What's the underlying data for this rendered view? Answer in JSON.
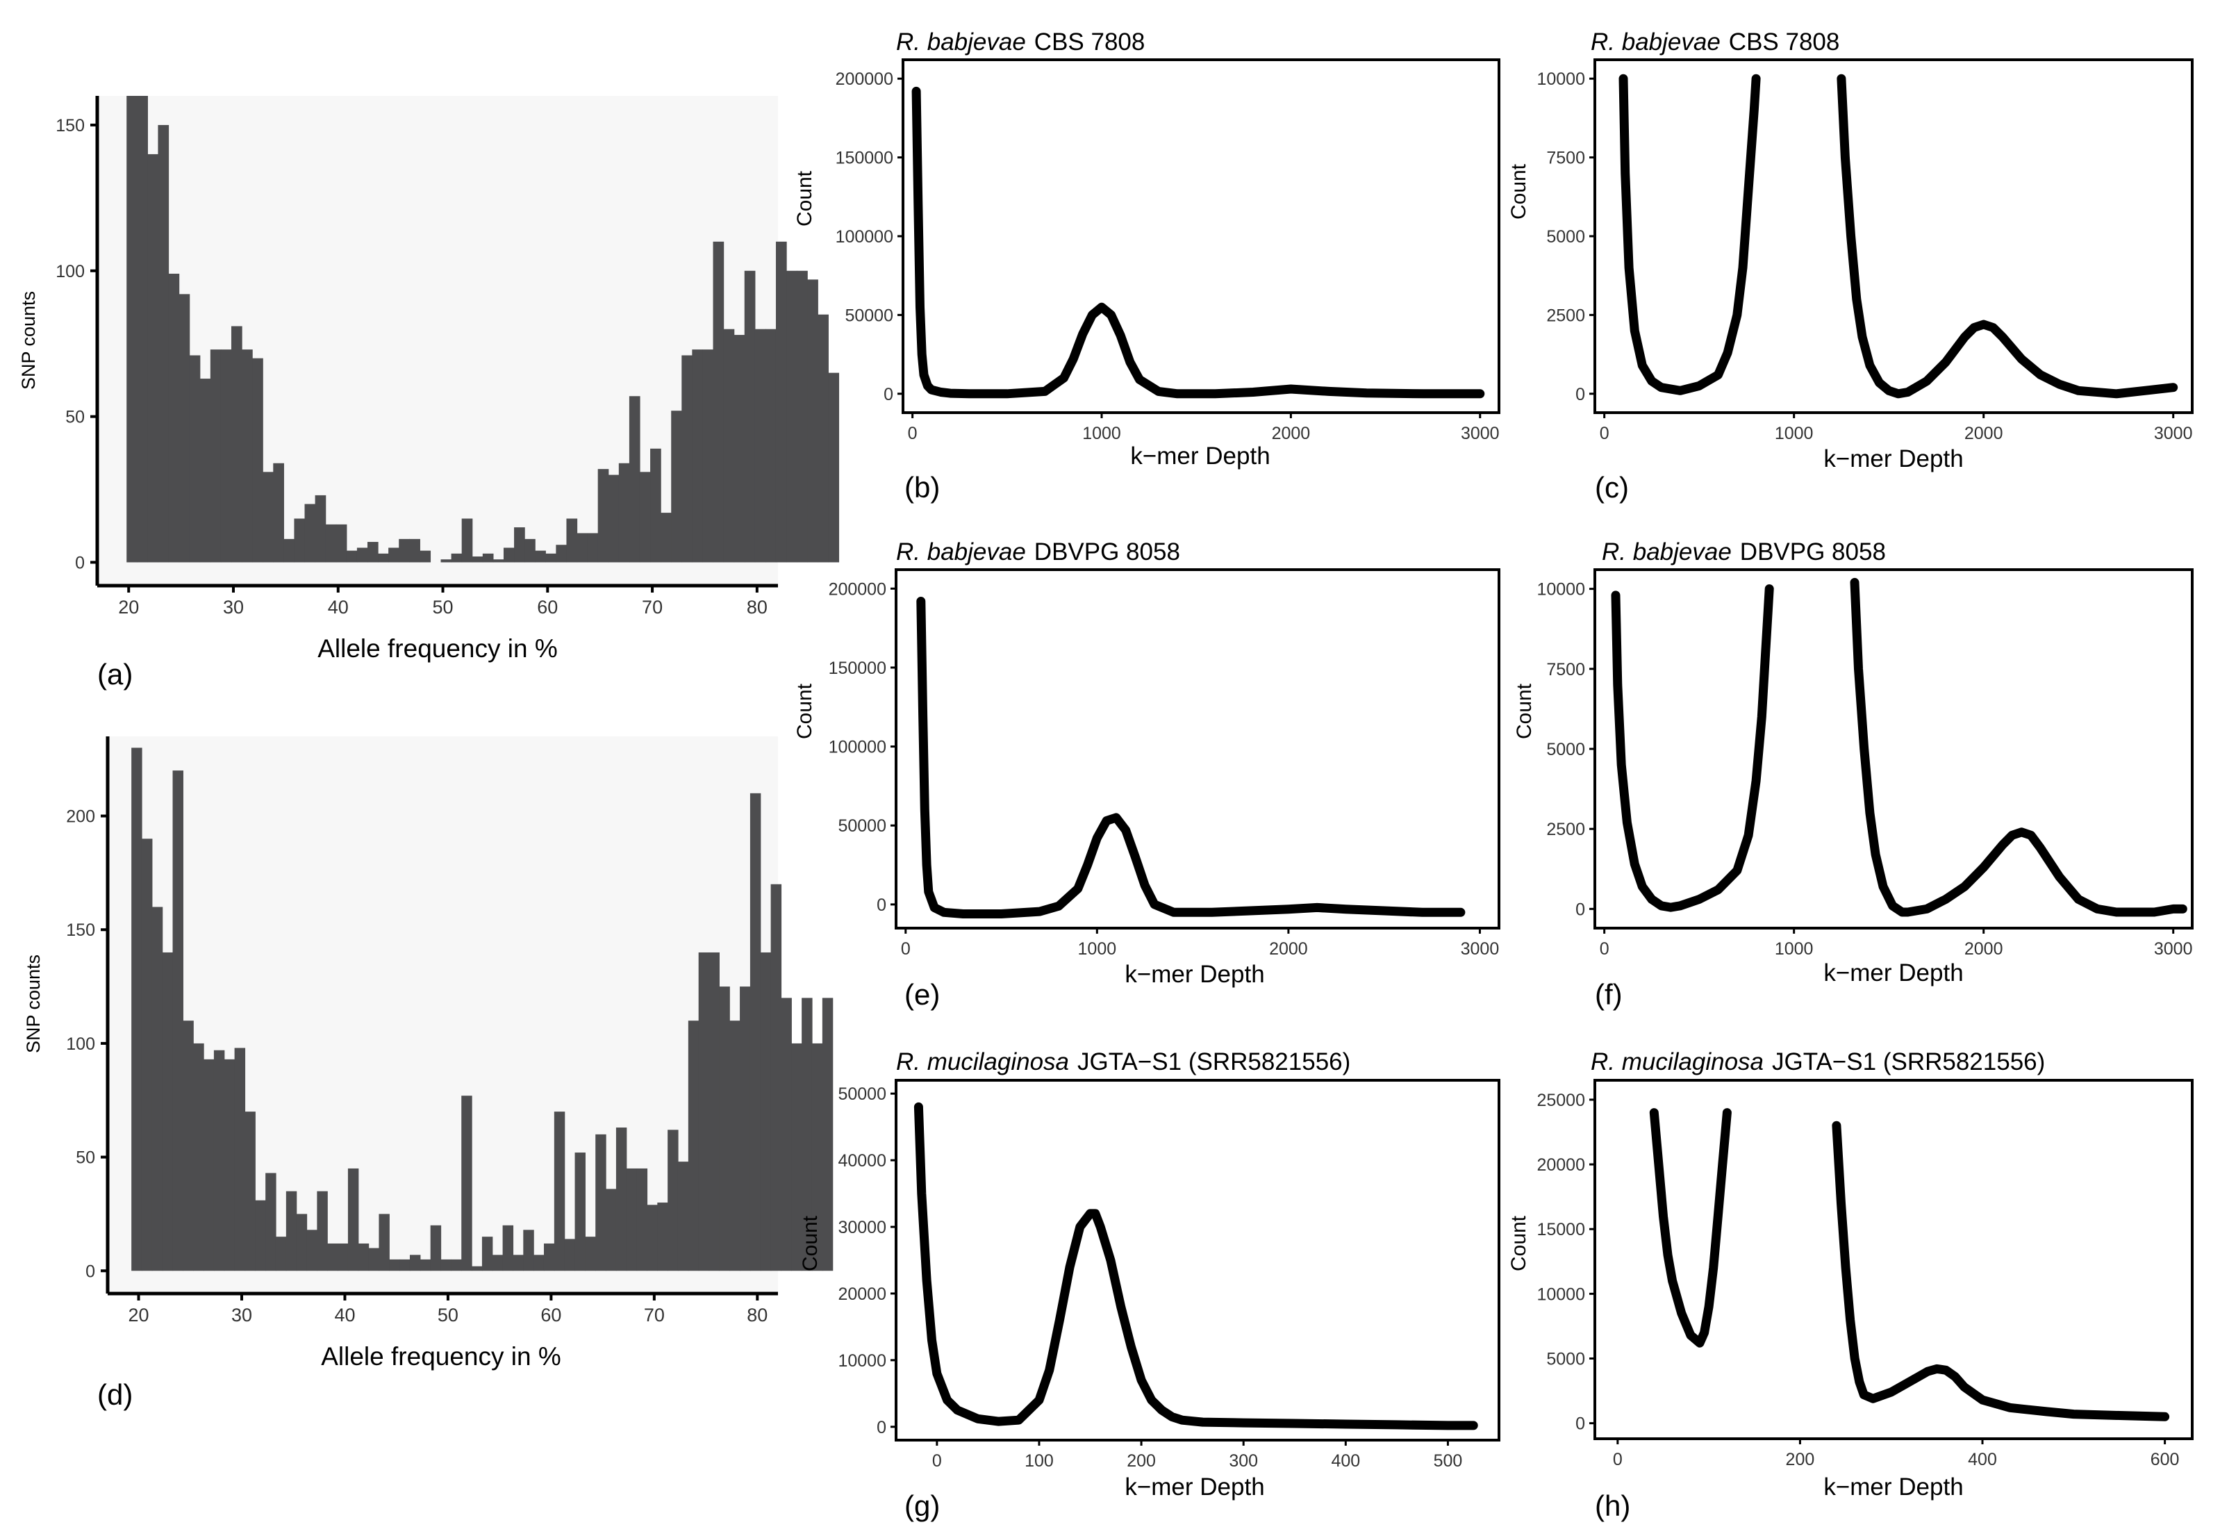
{
  "figure": {
    "colors": {
      "bar": "#4d4d4f",
      "hist_bg": "#f7f7f7",
      "line": "#000000",
      "axis": "#000000"
    }
  },
  "chart_data": [
    {
      "id": "a",
      "type": "bar",
      "panel_label": "(a)",
      "title": "",
      "xlabel": "Allele frequency in %",
      "ylabel": "SNP counts",
      "xlim": [
        17,
        82
      ],
      "ylim": [
        -8,
        160
      ],
      "xticks": [
        20,
        30,
        40,
        50,
        60,
        70,
        80
      ],
      "yticks": [
        0,
        50,
        100,
        150
      ],
      "bin_start": 19.8,
      "bin_width": 1.0,
      "values": [
        160,
        160,
        140,
        150,
        99,
        92,
        71,
        63,
        73,
        73,
        81,
        73,
        70,
        31,
        34,
        8,
        15,
        20,
        23,
        13,
        13,
        4,
        5,
        7,
        3,
        5,
        8,
        8,
        4,
        0,
        1,
        3,
        15,
        2,
        3,
        1,
        5,
        12,
        8,
        4,
        3,
        6,
        15,
        10,
        10,
        32,
        30,
        34,
        57,
        31,
        39,
        17,
        52,
        71,
        73,
        73,
        110,
        80,
        78,
        100,
        80,
        80,
        110,
        100,
        100,
        97,
        85,
        65
      ],
      "_note_values": "bins from 19.8% upward, width 1%"
    },
    {
      "id": "d",
      "type": "bar",
      "panel_label": "(d)",
      "title": "",
      "xlabel": "Allele frequency in %",
      "ylabel": "SNP counts",
      "xlim": [
        17,
        82
      ],
      "ylim": [
        -10,
        235
      ],
      "xticks": [
        20,
        30,
        40,
        50,
        60,
        70,
        80
      ],
      "yticks": [
        0,
        50,
        100,
        150,
        200
      ],
      "bin_start": 19.3,
      "bin_width": 1.0,
      "values": [
        230,
        190,
        160,
        140,
        220,
        110,
        100,
        93,
        97,
        93,
        98,
        70,
        31,
        43,
        15,
        35,
        25,
        18,
        35,
        12,
        12,
        45,
        12,
        10,
        25,
        5,
        5,
        7,
        5,
        20,
        5,
        5,
        77,
        2,
        15,
        7,
        20,
        7,
        18,
        7,
        12,
        70,
        14,
        52,
        15,
        60,
        36,
        63,
        45,
        45,
        29,
        30,
        62,
        48,
        110,
        140,
        140,
        125,
        110,
        125,
        210,
        140,
        170,
        120,
        100,
        120,
        100,
        120
      ]
    },
    {
      "id": "b",
      "type": "line",
      "panel_label": "(b)",
      "title_italic": "R. babjevae",
      "title_rest": "CBS 7808",
      "xlabel": "k−mer Depth",
      "ylabel": "Count",
      "xlim": [
        -50,
        3100
      ],
      "ylim": [
        -12000,
        212000
      ],
      "xticks": [
        0,
        1000,
        2000,
        3000
      ],
      "yticks": [
        0,
        50000,
        100000,
        150000,
        200000
      ],
      "x": [
        20,
        30,
        40,
        50,
        60,
        80,
        100,
        150,
        200,
        300,
        500,
        700,
        800,
        850,
        900,
        950,
        1000,
        1050,
        1100,
        1150,
        1200,
        1300,
        1400,
        1600,
        1800,
        2000,
        2200,
        2400,
        2700,
        3000
      ],
      "y": [
        192000,
        120000,
        55000,
        25000,
        12000,
        5000,
        2500,
        1000,
        300,
        0,
        0,
        1500,
        10000,
        22000,
        38000,
        50000,
        55000,
        50000,
        37000,
        20000,
        9000,
        1500,
        0,
        0,
        1000,
        3000,
        1500,
        500,
        0,
        0
      ]
    },
    {
      "id": "c",
      "type": "line",
      "panel_label": "(c)",
      "title_italic": "R. babjevae",
      "title_rest": "CBS 7808",
      "xlabel": "k−mer Depth",
      "ylabel": "Count",
      "xlim": [
        -50,
        3100
      ],
      "ylim": [
        -600,
        10600
      ],
      "xticks": [
        0,
        1000,
        2000,
        3000
      ],
      "yticks": [
        0,
        2500,
        5000,
        7500,
        10000
      ],
      "segments": [
        {
          "x": [
            100,
            110,
            130,
            160,
            200,
            250,
            300,
            400,
            500,
            600,
            650,
            700,
            730,
            760,
            790,
            800
          ],
          "y": [
            10000,
            7000,
            4000,
            2000,
            900,
            400,
            200,
            100,
            250,
            600,
            1300,
            2500,
            4000,
            6500,
            9000,
            10000
          ]
        },
        {
          "x": [
            1250,
            1270,
            1300,
            1330,
            1360,
            1400,
            1450,
            1500,
            1550,
            1600,
            1700,
            1800,
            1900,
            1950,
            2000,
            2050,
            2100,
            2200,
            2300,
            2400,
            2500,
            2700,
            2850,
            3000
          ],
          "y": [
            10000,
            7500,
            5000,
            3000,
            1800,
            900,
            350,
            100,
            0,
            50,
            400,
            1000,
            1800,
            2100,
            2200,
            2100,
            1800,
            1100,
            600,
            300,
            100,
            0,
            100,
            200
          ]
        }
      ]
    },
    {
      "id": "e",
      "type": "line",
      "panel_label": "(e)",
      "title_italic": "R. babjevae",
      "title_rest": "DBVPG 8058",
      "xlabel": "k−mer Depth",
      "ylabel": "Count",
      "xlim": [
        -50,
        3100
      ],
      "ylim": [
        -15000,
        212000
      ],
      "xticks": [
        0,
        1000,
        2000,
        3000
      ],
      "yticks": [
        0,
        50000,
        100000,
        150000,
        200000
      ],
      "x": [
        80,
        90,
        100,
        110,
        120,
        150,
        200,
        300,
        500,
        700,
        800,
        900,
        950,
        1000,
        1050,
        1100,
        1150,
        1200,
        1250,
        1300,
        1400,
        1600,
        1800,
        2000,
        2150,
        2300,
        2500,
        2700,
        2900
      ],
      "y": [
        192000,
        120000,
        60000,
        25000,
        8000,
        -2000,
        -5000,
        -6000,
        -6000,
        -4500,
        -1000,
        10000,
        25000,
        42000,
        53000,
        55000,
        47000,
        30000,
        12000,
        0,
        -5000,
        -5000,
        -4000,
        -3000,
        -2000,
        -3000,
        -4000,
        -5000,
        -5000
      ]
    },
    {
      "id": "f",
      "type": "line",
      "panel_label": "(f)",
      "title_italic": "R. babjevae",
      "title_rest": "DBVPG 8058",
      "xlabel": "k−mer Depth",
      "ylabel": "Count",
      "xlim": [
        -50,
        3100
      ],
      "ylim": [
        -600,
        10600
      ],
      "xticks": [
        0,
        1000,
        2000,
        3000
      ],
      "yticks": [
        0,
        2500,
        5000,
        7500,
        10000
      ],
      "segments": [
        {
          "x": [
            60,
            70,
            90,
            120,
            160,
            200,
            250,
            300,
            350,
            400,
            500,
            600,
            700,
            760,
            800,
            830,
            850,
            870
          ],
          "y": [
            9800,
            7000,
            4500,
            2700,
            1400,
            700,
            300,
            100,
            50,
            100,
            300,
            600,
            1200,
            2300,
            4000,
            6000,
            8000,
            10000
          ]
        },
        {
          "x": [
            1320,
            1340,
            1370,
            1400,
            1430,
            1470,
            1520,
            1570,
            1600,
            1700,
            1800,
            1900,
            2000,
            2100,
            2150,
            2200,
            2250,
            2300,
            2400,
            2500,
            2600,
            2700,
            2800,
            2900,
            3000,
            3050
          ],
          "y": [
            10200,
            7500,
            5000,
            3000,
            1700,
            700,
            100,
            -100,
            -100,
            0,
            300,
            700,
            1300,
            2000,
            2300,
            2400,
            2300,
            1900,
            1000,
            300,
            0,
            -100,
            -100,
            -100,
            0,
            0
          ]
        }
      ]
    },
    {
      "id": "g",
      "type": "line",
      "panel_label": "(g)",
      "title_italic": "R. mucilaginosa",
      "title_rest": "JGTA−S1 (SRR5821556)",
      "xlabel": "k−mer Depth",
      "ylabel": "Count",
      "xlim": [
        -40,
        550
      ],
      "ylim": [
        -2000,
        52000
      ],
      "xticks": [
        0,
        100,
        200,
        300,
        400,
        500
      ],
      "yticks": [
        0,
        10000,
        20000,
        30000,
        40000,
        50000
      ],
      "x": [
        -18,
        -15,
        -10,
        -5,
        0,
        10,
        20,
        40,
        60,
        80,
        100,
        110,
        120,
        130,
        140,
        150,
        155,
        160,
        170,
        180,
        190,
        200,
        210,
        220,
        230,
        240,
        260,
        300,
        350,
        400,
        450,
        500,
        525
      ],
      "y": [
        48000,
        35000,
        22000,
        13000,
        8000,
        4000,
        2500,
        1200,
        800,
        1000,
        4000,
        8500,
        16000,
        24000,
        30000,
        32000,
        32000,
        30000,
        25000,
        18000,
        12000,
        7000,
        4000,
        2500,
        1500,
        1000,
        700,
        600,
        500,
        400,
        300,
        200,
        200
      ]
    },
    {
      "id": "h",
      "type": "line",
      "panel_label": "(h)",
      "title_italic": "R. mucilaginosa",
      "title_rest": "JGTA−S1 (SRR5821556)",
      "xlabel": "k−mer Depth",
      "ylabel": "Count",
      "xlim": [
        -25,
        630
      ],
      "ylim": [
        -1200,
        26500
      ],
      "xticks": [
        0,
        200,
        400,
        600
      ],
      "yticks": [
        0,
        5000,
        10000,
        15000,
        20000,
        25000
      ],
      "segments": [
        {
          "x": [
            40,
            45,
            50,
            55,
            60,
            70,
            80,
            90,
            95,
            100,
            105,
            110,
            115,
            120
          ],
          "y": [
            24000,
            20000,
            16000,
            13000,
            11000,
            8500,
            6800,
            6200,
            7000,
            9000,
            12000,
            16000,
            20000,
            24000
          ]
        },
        {
          "x": [
            240,
            245,
            250,
            255,
            260,
            265,
            270,
            280,
            300,
            320,
            340,
            350,
            360,
            370,
            380,
            400,
            430,
            470,
            500,
            550,
            600
          ],
          "y": [
            23000,
            17000,
            12000,
            8000,
            5000,
            3200,
            2200,
            1900,
            2400,
            3200,
            4000,
            4200,
            4100,
            3600,
            2800,
            1800,
            1200,
            900,
            700,
            600,
            500
          ]
        }
      ]
    }
  ]
}
